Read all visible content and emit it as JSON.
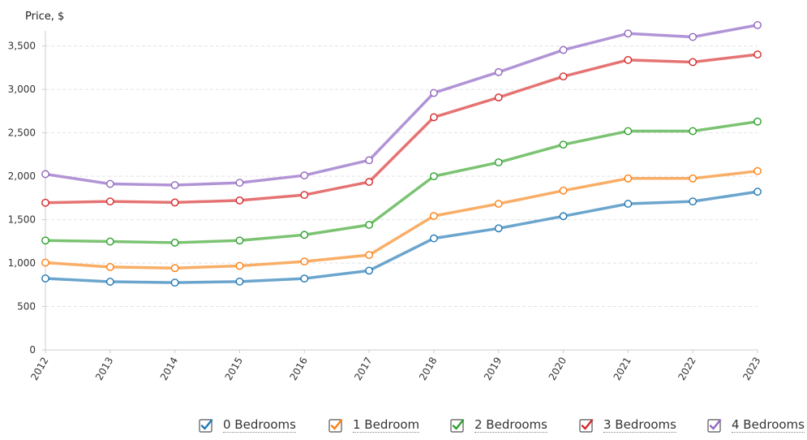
{
  "chart_data": {
    "type": "line",
    "ylabel": "Price, $",
    "xlabel": "",
    "ylim": [
      0,
      3750
    ],
    "yticks": [
      0,
      500,
      1000,
      1500,
      2000,
      2500,
      3000,
      3500
    ],
    "ytick_labels": [
      "0",
      "500",
      "1,000",
      "1,500",
      "2,000",
      "2,500",
      "3,000",
      "3,500"
    ],
    "categories": [
      "2012",
      "2013",
      "2014",
      "2015",
      "2016",
      "2017",
      "2018",
      "2019",
      "2020",
      "2021",
      "2022",
      "2023"
    ],
    "grid": "horizontal dashed",
    "legend_position": "bottom-right",
    "series": [
      {
        "name": "0 Bedrooms",
        "color": "#6ba5cd",
        "values": [
          823,
          785,
          775,
          787,
          822,
          913,
          1285,
          1400,
          1540,
          1683,
          1710,
          1822
        ]
      },
      {
        "name": "1 Bedroom",
        "color": "#f9ae67",
        "values": [
          1005,
          955,
          942,
          968,
          1018,
          1093,
          1543,
          1683,
          1835,
          1975,
          1975,
          2060
        ]
      },
      {
        "name": "2 Bedrooms",
        "color": "#7bc372",
        "values": [
          1260,
          1248,
          1235,
          1260,
          1325,
          1440,
          2000,
          2160,
          2365,
          2520,
          2520,
          2630
        ]
      },
      {
        "name": "3 Bedrooms",
        "color": "#e57373",
        "values": [
          1695,
          1710,
          1698,
          1722,
          1785,
          1935,
          2680,
          2908,
          3150,
          3340,
          3315,
          3403
        ]
      },
      {
        "name": "4 Bedrooms",
        "color": "#b194d6",
        "values": [
          2025,
          1912,
          1898,
          1925,
          2010,
          2185,
          2960,
          3200,
          3455,
          3645,
          3605,
          3742
        ]
      }
    ]
  },
  "legend": {
    "items": [
      {
        "label": "0 Bedrooms",
        "checked": true,
        "check_icon": "checkmark-icon",
        "color": "#1f77b4"
      },
      {
        "label": "1 Bedroom",
        "checked": true,
        "check_icon": "checkmark-icon",
        "color": "#ff7f0e"
      },
      {
        "label": "2 Bedrooms",
        "checked": true,
        "check_icon": "checkmark-icon",
        "color": "#2ca02c"
      },
      {
        "label": "3 Bedrooms",
        "checked": true,
        "check_icon": "checkmark-icon",
        "color": "#d62728"
      },
      {
        "label": "4 Bedrooms",
        "checked": true,
        "check_icon": "checkmark-icon",
        "color": "#9467bd"
      }
    ]
  }
}
